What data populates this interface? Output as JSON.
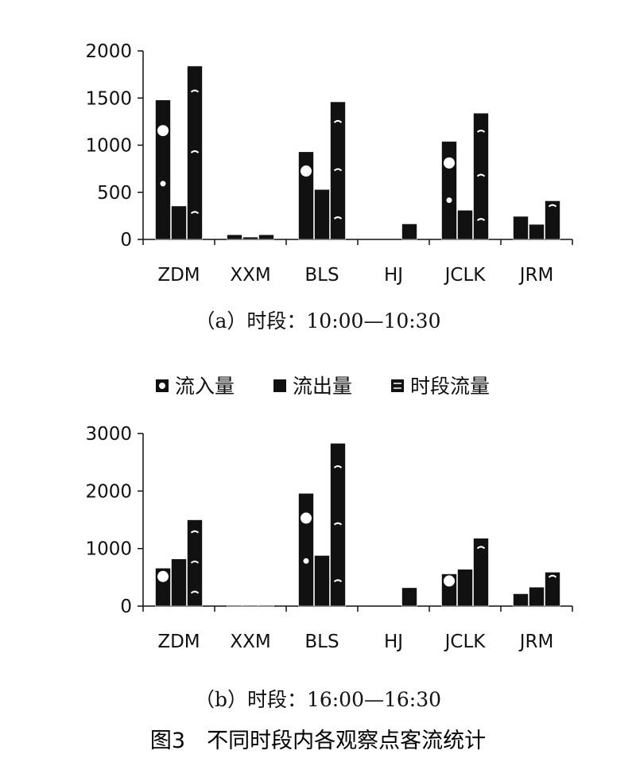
{
  "figure_title": "图3　不同时段内各观察点客流统计",
  "legend_labels": [
    "流入量",
    "流出量",
    "时段流量"
  ],
  "chart_data": [
    {
      "type": "bar",
      "caption": "（a）时段：10:00—10:30",
      "categories": [
        "ZDM",
        "XXM",
        "BLS",
        "HJ",
        "JCLK",
        "JRM"
      ],
      "ylim": [
        0,
        2000
      ],
      "yticks": [
        0,
        500,
        1000,
        1500,
        2000
      ],
      "grid": false,
      "legend": "top",
      "series": [
        {
          "name": "流入量",
          "values": [
            1480,
            50,
            930,
            0,
            1040,
            245
          ]
        },
        {
          "name": "流出量",
          "values": [
            355,
            25,
            530,
            0,
            310,
            160
          ]
        },
        {
          "name": "时段流量",
          "values": [
            1840,
            50,
            1460,
            165,
            1340,
            410
          ]
        }
      ]
    },
    {
      "type": "bar",
      "caption": "（b）时段：16:00—16:30",
      "categories": [
        "ZDM",
        "XXM",
        "BLS",
        "HJ",
        "JCLK",
        "JRM"
      ],
      "ylim": [
        0,
        3000
      ],
      "yticks": [
        0,
        1000,
        2000,
        3000
      ],
      "grid": false,
      "legend": "top",
      "series": [
        {
          "name": "流入量",
          "values": [
            660,
            15,
            1960,
            0,
            560,
            215
          ]
        },
        {
          "name": "流出量",
          "values": [
            820,
            15,
            880,
            0,
            640,
            330
          ]
        },
        {
          "name": "时段流量",
          "values": [
            1500,
            15,
            2830,
            320,
            1180,
            590
          ]
        }
      ]
    }
  ]
}
